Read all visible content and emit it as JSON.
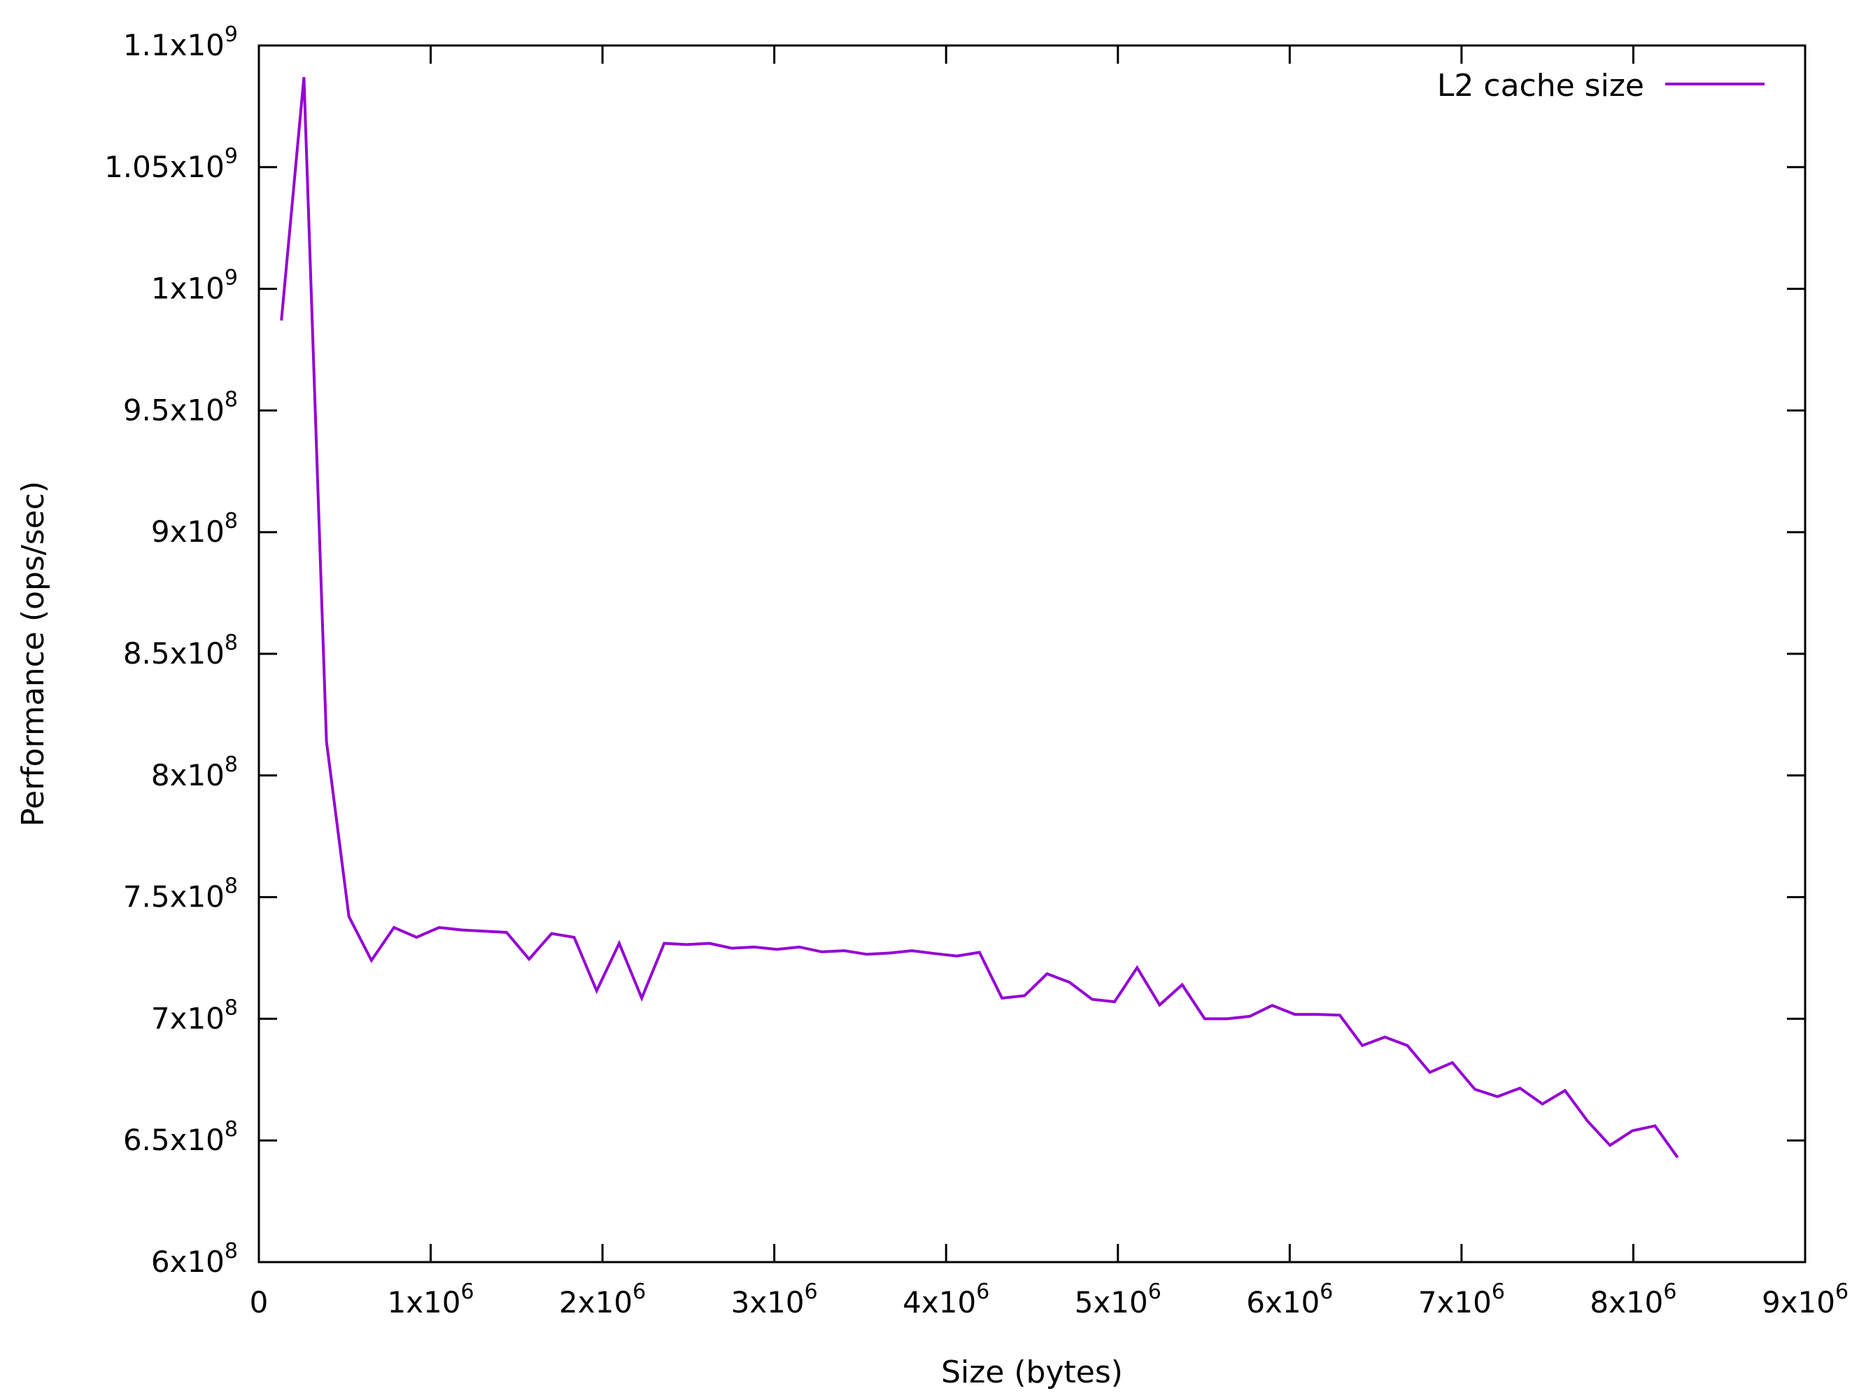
{
  "chart_data": {
    "type": "line",
    "title": "",
    "xlabel": "Size (bytes)",
    "ylabel": "Performance (ops/sec)",
    "xlim": [
      0,
      9000000
    ],
    "ylim": [
      600000000,
      1100000000
    ],
    "x_ticks": [
      {
        "value": 0,
        "base": "0",
        "exp": ""
      },
      {
        "value": 1000000,
        "base": "1x10",
        "exp": "6"
      },
      {
        "value": 2000000,
        "base": "2x10",
        "exp": "6"
      },
      {
        "value": 3000000,
        "base": "3x10",
        "exp": "6"
      },
      {
        "value": 4000000,
        "base": "4x10",
        "exp": "6"
      },
      {
        "value": 5000000,
        "base": "5x10",
        "exp": "6"
      },
      {
        "value": 6000000,
        "base": "6x10",
        "exp": "6"
      },
      {
        "value": 7000000,
        "base": "7x10",
        "exp": "6"
      },
      {
        "value": 8000000,
        "base": "8x10",
        "exp": "6"
      },
      {
        "value": 9000000,
        "base": "9x10",
        "exp": "6"
      }
    ],
    "y_ticks": [
      {
        "value": 600000000,
        "base": "6x10",
        "exp": "8"
      },
      {
        "value": 650000000,
        "base": "6.5x10",
        "exp": "8"
      },
      {
        "value": 700000000,
        "base": "7x10",
        "exp": "8"
      },
      {
        "value": 750000000,
        "base": "7.5x10",
        "exp": "8"
      },
      {
        "value": 800000000,
        "base": "8x10",
        "exp": "8"
      },
      {
        "value": 850000000,
        "base": "8.5x10",
        "exp": "8"
      },
      {
        "value": 900000000,
        "base": "9x10",
        "exp": "8"
      },
      {
        "value": 950000000,
        "base": "9.5x10",
        "exp": "8"
      },
      {
        "value": 1000000000,
        "base": "1x10",
        "exp": "9"
      },
      {
        "value": 1050000000,
        "base": "1.05x10",
        "exp": "9"
      },
      {
        "value": 1100000000,
        "base": "1.1x10",
        "exp": "9"
      }
    ],
    "grid": false,
    "legend_position": "top-right",
    "series": [
      {
        "name": "L2 cache size",
        "color": "#9400d3",
        "x": [
          131072,
          262144,
          393216,
          524288,
          655360,
          786432,
          917504,
          1048576,
          1179648,
          1310720,
          1441792,
          1572864,
          1703936,
          1835008,
          1966080,
          2097152,
          2228224,
          2359296,
          2490368,
          2621440,
          2752512,
          2883584,
          3014656,
          3145728,
          3276800,
          3407872,
          3538944,
          3670016,
          3801088,
          3932160,
          4063232,
          4194304,
          4325376,
          4456448,
          4587520,
          4718592,
          4849664,
          4980736,
          5111808,
          5242880,
          5373952,
          5505024,
          5636096,
          5767168,
          5898240,
          6029312,
          6160384,
          6291456,
          6422528,
          6553600,
          6684672,
          6815744,
          6946816,
          7077888,
          7208960,
          7340032,
          7471104,
          7602176,
          7733248,
          7864320,
          7995392,
          8126464,
          8257536
        ],
        "y": [
          987000000,
          1087000000,
          814000000,
          742000000,
          724000000,
          737500000,
          733500000,
          737500000,
          736500000,
          736000000,
          735500000,
          724500000,
          735000000,
          733500000,
          711500000,
          731000000,
          708500000,
          731000000,
          730500000,
          731000000,
          729000000,
          729500000,
          728500000,
          729500000,
          727500000,
          728000000,
          726500000,
          727000000,
          728000000,
          726800000,
          725800000,
          727300000,
          708500000,
          709500000,
          718500000,
          715000000,
          708000000,
          707000000,
          721000000,
          705700000,
          714000000,
          700000000,
          700000000,
          701000000,
          705500000,
          701800000,
          701800000,
          701500000,
          689000000,
          692500000,
          689000000,
          678000000,
          682000000,
          671000000,
          668000000,
          671500000,
          665000000,
          670500000,
          658000000,
          648000000,
          654000000,
          656000000,
          643000000
        ]
      }
    ]
  }
}
